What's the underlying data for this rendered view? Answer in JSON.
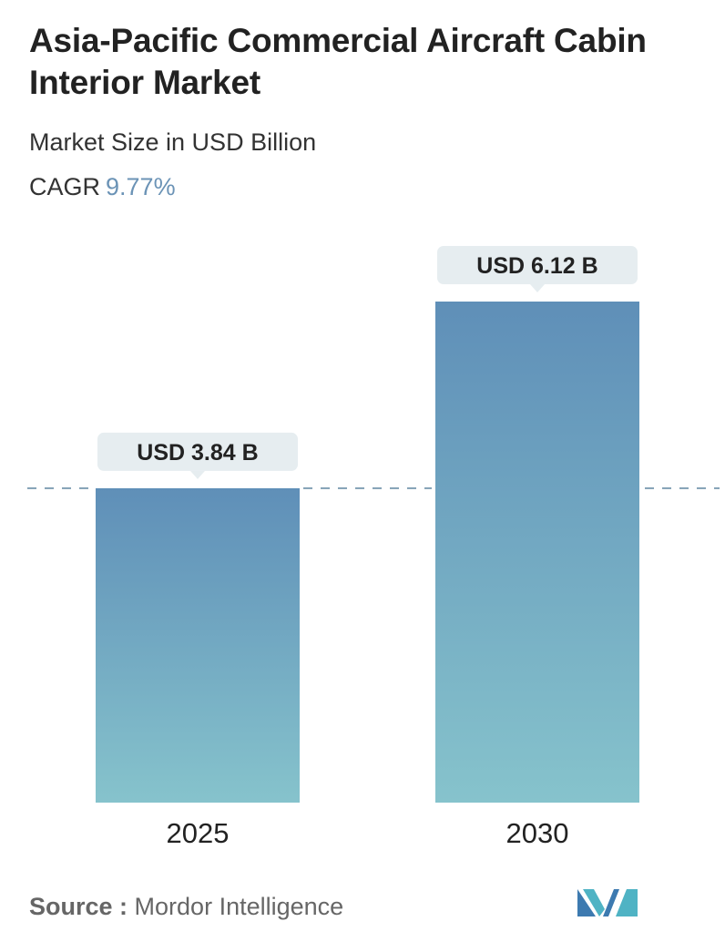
{
  "header": {
    "title": "Asia-Pacific Commercial Aircraft Cabin Interior Market",
    "subtitle": "Market Size in USD Billion",
    "cagr_label": "CAGR",
    "cagr_value": "9.77%"
  },
  "chart_data": {
    "type": "bar",
    "categories": [
      "2025",
      "2030"
    ],
    "values": [
      3.84,
      6.12
    ],
    "data_labels": [
      "USD 3.84 B",
      "USD 6.12 B"
    ],
    "ylim": [
      0,
      6.12
    ],
    "reference_line": 3.84,
    "grid": false,
    "colors": {
      "bar_top": "#5f8fb8",
      "bar_bottom": "#86c3cc",
      "label_bg": "#e6edf0",
      "label_text": "#222222",
      "dashed_line": "#6b8ea8",
      "axis_text": "#222222"
    }
  },
  "footer": {
    "source_label": "Source :",
    "source_name": "Mordor Intelligence",
    "logo_icon": "mordor-intelligence-logo-icon"
  }
}
